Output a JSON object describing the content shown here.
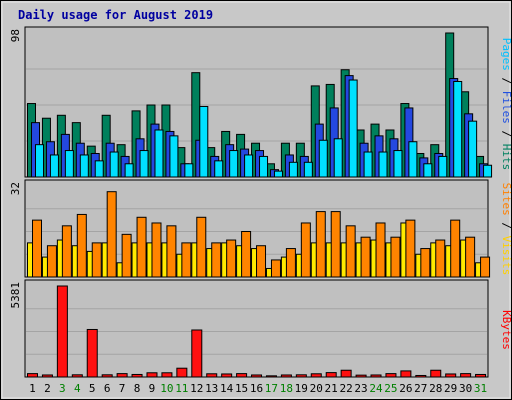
{
  "chart_data": {
    "type": "bar",
    "title": "Daily usage for August 2019",
    "categories": [
      "1",
      "2",
      "3",
      "4",
      "5",
      "6",
      "7",
      "8",
      "9",
      "10",
      "11",
      "12",
      "13",
      "14",
      "15",
      "16",
      "17",
      "18",
      "19",
      "20",
      "21",
      "22",
      "23",
      "24",
      "25",
      "26",
      "27",
      "28",
      "29",
      "30",
      "31"
    ],
    "weekend_days": [
      "3",
      "4",
      "10",
      "11",
      "17",
      "18",
      "24",
      "25",
      "31"
    ],
    "panels": [
      {
        "ymax_label": "98",
        "ymax": 98,
        "side_label": [
          {
            "text": "Pages",
            "color": "#00c0ff"
          },
          {
            "text": " / ",
            "color": "#000000"
          },
          {
            "text": "Files",
            "color": "#2050e0"
          },
          {
            "text": " / ",
            "color": "#000000"
          },
          {
            "text": "Hits",
            "color": "#008060"
          }
        ],
        "series": [
          {
            "name": "Hits",
            "color": "#00805c",
            "values": [
              50,
              40,
              42,
              37,
              21,
              42,
              22,
              45,
              49,
              49,
              20,
              71,
              20,
              31,
              29,
              23,
              9,
              23,
              23,
              62,
              63,
              73,
              32,
              36,
              32,
              50,
              16,
              22,
              98,
              58,
              14
            ]
          },
          {
            "name": "Files",
            "color": "#2448e0",
            "values": [
              37,
              24,
              29,
              23,
              16,
              23,
              14,
              26,
              36,
              31,
              9,
              25,
              14,
              22,
              19,
              18,
              5,
              15,
              14,
              36,
              47,
              69,
              23,
              28,
              26,
              47,
              13,
              16,
              67,
              43,
              9
            ]
          },
          {
            "name": "Pages",
            "color": "#00e0ff",
            "values": [
              22,
              15,
              18,
              15,
              11,
              17,
              9,
              18,
              32,
              28,
              9,
              48,
              11,
              18,
              15,
              14,
              4,
              10,
              10,
              25,
              26,
              66,
              17,
              17,
              18,
              24,
              9,
              14,
              65,
              38,
              8
            ]
          }
        ]
      },
      {
        "ymax_label": "32",
        "ymax": 32,
        "side_label": [
          {
            "text": "Sites",
            "color": "#ff8000"
          },
          {
            "text": " / ",
            "color": "#000000"
          },
          {
            "text": "Visits",
            "color": "#ffd000"
          }
        ],
        "series": [
          {
            "name": "Visits",
            "color": "#ffea00",
            "values": [
              12,
              7,
              13,
              11,
              9,
              12,
              5,
              12,
              12,
              12,
              8,
              12,
              10,
              12,
              11,
              10,
              3,
              7,
              8,
              12,
              12,
              12,
              12,
              13,
              12,
              19,
              8,
              12,
              11,
              13,
              5
            ]
          },
          {
            "name": "Sites",
            "color": "#ff8400",
            "values": [
              20,
              11,
              18,
              22,
              12,
              30,
              15,
              21,
              19,
              18,
              12,
              21,
              12,
              13,
              16,
              11,
              6,
              10,
              19,
              23,
              23,
              18,
              14,
              19,
              14,
              20,
              10,
              13,
              20,
              14,
              7
            ]
          }
        ]
      },
      {
        "ymax_label": "5381",
        "ymax": 5381,
        "side_label": [
          {
            "text": "KBytes",
            "color": "#ff0000"
          }
        ],
        "series": [
          {
            "name": "KBytes",
            "color": "#ff1010",
            "values": [
              200,
              120,
              5381,
              130,
              2810,
              130,
              200,
              150,
              250,
              250,
              520,
              2780,
              190,
              180,
              200,
              120,
              70,
              120,
              130,
              190,
              260,
              400,
              110,
              120,
              200,
              360,
              90,
              400,
              180,
              200,
              150
            ]
          }
        ]
      }
    ]
  }
}
